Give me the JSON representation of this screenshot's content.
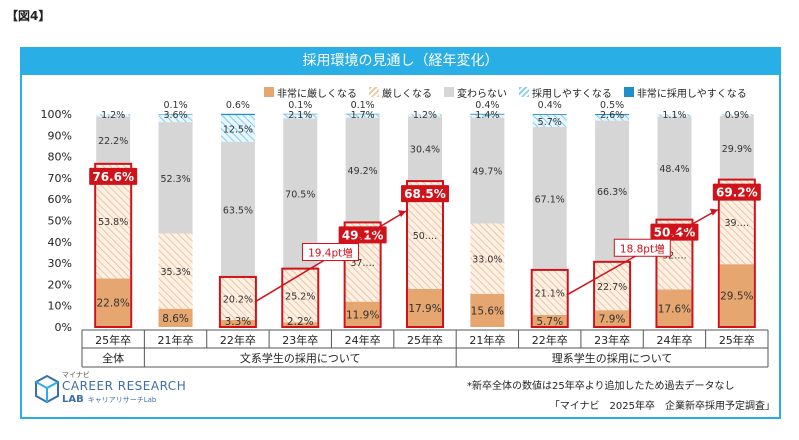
{
  "figure_label": "【図4】",
  "banner_title": "採用環境の見通し（経年変化）",
  "legend": [
    {
      "name": "非常に厳しくなる",
      "color": "#e5a66f",
      "pattern": "solid"
    },
    {
      "name": "厳しくなる",
      "color": "#f3c9a3",
      "pattern": "hatch"
    },
    {
      "name": "変わらない",
      "color": "#d6d6d6",
      "pattern": "solid"
    },
    {
      "name": "採用しやすくなる",
      "color": "#8fd0f0",
      "pattern": "hatch"
    },
    {
      "name": "非常に採用しやすくなる",
      "color": "#1f8fc7",
      "pattern": "solid"
    }
  ],
  "chart_data": {
    "type": "bar",
    "stacked": true,
    "y_ticks": [
      "0%",
      "10%",
      "20%",
      "30%",
      "40%",
      "50%",
      "60%",
      "70%",
      "80%",
      "90%",
      "100%"
    ],
    "ylim": [
      0,
      100
    ],
    "categories": [
      "25年卒",
      "21年卒",
      "22年卒",
      "23年卒",
      "24年卒",
      "25年卒",
      "21年卒",
      "22年卒",
      "23年卒",
      "24年卒",
      "25年卒"
    ],
    "groups": [
      {
        "label": "全体",
        "span": [
          0,
          0
        ]
      },
      {
        "label": "文系学生の採用について",
        "span": [
          1,
          5
        ]
      },
      {
        "label": "理系学生の採用について",
        "span": [
          6,
          10
        ]
      }
    ],
    "series": [
      {
        "name": "非常に厳しくなる",
        "values": [
          22.8,
          8.6,
          3.3,
          2.2,
          11.9,
          17.9,
          15.6,
          5.7,
          7.9,
          17.6,
          29.5
        ],
        "labels": [
          "22.8%",
          "8.6%",
          "3.3%",
          "2.2%",
          "11.9%",
          "17.9%",
          "15.6%",
          "5.7%",
          "7.9%",
          "17.6%",
          "29.5%"
        ]
      },
      {
        "name": "厳しくなる",
        "values": [
          53.8,
          35.3,
          20.2,
          25.2,
          37.2,
          50.6,
          33.0,
          21.1,
          22.7,
          32.8,
          39.7
        ],
        "labels": [
          "53.8%",
          "35.3%",
          "20.2%",
          "25.2%",
          "37.…",
          "50.…",
          "33.0%",
          "21.1%",
          "22.7%",
          "32.…",
          "39.…"
        ]
      },
      {
        "name": "変わらない",
        "values": [
          22.2,
          52.3,
          63.5,
          70.5,
          49.2,
          30.4,
          49.7,
          67.1,
          66.3,
          48.4,
          29.9
        ],
        "labels": [
          "22.2%",
          "52.3%",
          "63.5%",
          "70.5%",
          "49.2%",
          "30.4%",
          "49.7%",
          "67.1%",
          "66.3%",
          "48.4%",
          "29.9%"
        ]
      },
      {
        "name": "採用しやすくなる",
        "values": [
          1.2,
          3.6,
          12.5,
          2.1,
          1.7,
          1.2,
          1.4,
          5.7,
          2.6,
          1.1,
          0.9
        ],
        "labels": [
          "1.2%",
          "3.6%",
          "12.5%",
          "2.1%",
          "1.7%",
          "1.2%",
          "1.4%",
          "5.7%",
          "2.6%",
          "1.1%",
          "0.9%"
        ]
      },
      {
        "name": "非常に採用しやすくなる",
        "values": [
          0,
          0.1,
          0.6,
          0.1,
          0.1,
          0,
          0.4,
          0.4,
          0.5,
          0,
          0
        ],
        "labels": [
          "",
          "0.1%",
          "0.6%",
          "0.1%",
          "0.1%",
          "",
          "0.4%",
          "0.4%",
          "0.5%",
          "",
          ""
        ]
      }
    ],
    "highlights": [
      {
        "index": 0,
        "value": 76.6,
        "label": "76.6%"
      },
      {
        "index": 4,
        "value": 49.1,
        "label": "49.1%"
      },
      {
        "index": 5,
        "value": 68.5,
        "label": "68.5%"
      },
      {
        "index": 9,
        "value": 50.4,
        "label": "50.4%"
      },
      {
        "index": 10,
        "value": 69.2,
        "label": "69.2%"
      }
    ],
    "outlined_totals": [
      {
        "index": 2,
        "value": 23.5
      },
      {
        "index": 3,
        "value": 27.4
      },
      {
        "index": 7,
        "value": 26.8
      },
      {
        "index": 8,
        "value": 30.6
      }
    ],
    "callouts": [
      {
        "text": "19.4pt増",
        "from": 2,
        "to": 5
      },
      {
        "text": "18.8pt増",
        "from": 7,
        "to": 10
      }
    ]
  },
  "logo": {
    "small": "マイナビ",
    "big": "CAREER RESEARCH",
    "lab": "LAB",
    "lab_sub": "キャリアリサーチLab"
  },
  "note": "*新卒全体の数値は25年卒より追加したため過去データなし",
  "source": "「マイナビ　2025年卒　企業新卒採用予定調査」"
}
